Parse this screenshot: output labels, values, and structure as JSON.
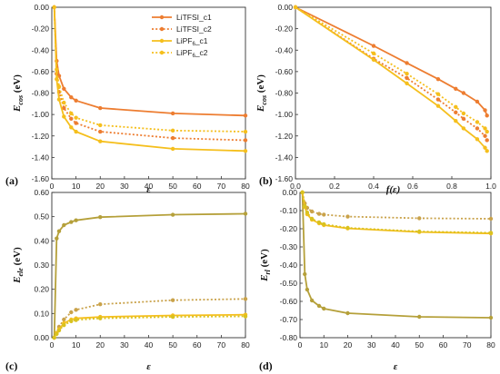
{
  "chart_data": [
    {
      "id": "a",
      "type": "line",
      "panel_label": "(a)",
      "xlabel": "ε",
      "ylabel_main": "E",
      "ylabel_sub": "cos",
      "ylabel_unit": " (eV)",
      "xlim": [
        0,
        80
      ],
      "ylim": [
        -1.6,
        0
      ],
      "xticks": [
        0,
        10,
        20,
        30,
        40,
        50,
        60,
        70,
        80
      ],
      "yticks": [
        0,
        -0.2,
        -0.4,
        -0.6,
        -0.8,
        -1.0,
        -1.2,
        -1.4,
        -1.6
      ],
      "ytick_labels": [
        "0.00",
        "-0.20",
        "-0.40",
        "-0.60",
        "-0.80",
        "-1.00",
        "-1.20",
        "-1.40",
        "-1.60"
      ],
      "legend": {
        "placement": "top-right",
        "entries": [
          {
            "series": 0,
            "text": "LiTFSI_c1"
          },
          {
            "series": 1,
            "text": "LiTFSI_c2"
          },
          {
            "series": 2,
            "text_main": "LiPF",
            "text_sub": "6",
            "text_tail": "_c1"
          },
          {
            "series": 3,
            "text_main": "LiPF",
            "text_sub": "6",
            "text_tail": "_c2"
          }
        ]
      },
      "series": [
        {
          "name": "LiTFSI_c1",
          "color": "#ed7d31",
          "dashed": false,
          "x": [
            1,
            2,
            3,
            5,
            8,
            10,
            20,
            50,
            80
          ],
          "y": [
            0,
            -0.5,
            -0.64,
            -0.76,
            -0.84,
            -0.87,
            -0.94,
            -0.99,
            -1.01
          ]
        },
        {
          "name": "LiTFSI_c2",
          "color": "#ed7d31",
          "dashed": true,
          "x": [
            1,
            2,
            3,
            5,
            8,
            10,
            20,
            50,
            80
          ],
          "y": [
            0,
            -0.62,
            -0.79,
            -0.94,
            -1.04,
            -1.08,
            -1.16,
            -1.22,
            -1.24
          ]
        },
        {
          "name": "LiPF6_c1",
          "color": "#f5bf1d",
          "dashed": false,
          "x": [
            1,
            2,
            3,
            5,
            8,
            10,
            20,
            50,
            80
          ],
          "y": [
            0,
            -0.67,
            -0.86,
            -1.02,
            -1.12,
            -1.16,
            -1.25,
            -1.32,
            -1.34
          ]
        },
        {
          "name": "LiPF6_c2",
          "color": "#f5bf1d",
          "dashed": true,
          "x": [
            1,
            2,
            3,
            5,
            8,
            10,
            20,
            50,
            80
          ],
          "y": [
            0,
            -0.58,
            -0.74,
            -0.89,
            -0.99,
            -1.03,
            -1.1,
            -1.15,
            -1.16
          ]
        }
      ]
    },
    {
      "id": "b",
      "type": "line",
      "panel_label": "(b)",
      "xlabel": "f(ε)",
      "ylabel_main": "E",
      "ylabel_sub": "cos",
      "ylabel_unit": " (eV)",
      "xlim": [
        0,
        1
      ],
      "ylim": [
        -1.6,
        0
      ],
      "xticks": [
        0,
        0.2,
        0.4,
        0.6,
        0.8,
        1.0
      ],
      "xtick_labels": [
        "0.0",
        "0.2",
        "0.4",
        "0.6",
        "0.8",
        "1.0"
      ],
      "yticks": [
        0,
        -0.2,
        -0.4,
        -0.6,
        -0.8,
        -1.0,
        -1.2,
        -1.4,
        -1.6
      ],
      "ytick_labels": [
        "0.00",
        "-0.20",
        "-0.40",
        "-0.60",
        "-0.80",
        "-1.00",
        "-1.20",
        "-1.40",
        "-1.60"
      ],
      "series": [
        {
          "name": "LiTFSI_c1",
          "color": "#ed7d31",
          "dashed": false,
          "x": [
            0,
            0.4,
            0.57,
            0.73,
            0.82,
            0.86,
            0.93,
            0.97,
            0.98
          ],
          "y": [
            0,
            -0.36,
            -0.52,
            -0.67,
            -0.76,
            -0.8,
            -0.88,
            -0.96,
            -1.01
          ]
        },
        {
          "name": "LiTFSI_c2",
          "color": "#ed7d31",
          "dashed": true,
          "x": [
            0,
            0.4,
            0.57,
            0.73,
            0.82,
            0.86,
            0.93,
            0.97,
            0.98
          ],
          "y": [
            0,
            -0.48,
            -0.66,
            -0.86,
            -0.98,
            -1.04,
            -1.13,
            -1.2,
            -1.24
          ]
        },
        {
          "name": "LiPF6_c1",
          "color": "#f5bf1d",
          "dashed": false,
          "x": [
            0,
            0.4,
            0.57,
            0.73,
            0.82,
            0.86,
            0.93,
            0.97,
            0.98
          ],
          "y": [
            0,
            -0.49,
            -0.71,
            -0.92,
            -1.06,
            -1.13,
            -1.23,
            -1.31,
            -1.34
          ]
        },
        {
          "name": "LiPF6_c2",
          "color": "#f5bf1d",
          "dashed": true,
          "x": [
            0,
            0.4,
            0.57,
            0.73,
            0.82,
            0.86,
            0.93,
            0.97,
            0.98
          ],
          "y": [
            0,
            -0.43,
            -0.62,
            -0.81,
            -0.93,
            -0.99,
            -1.07,
            -1.13,
            -1.16
          ]
        }
      ]
    },
    {
      "id": "c",
      "type": "line",
      "panel_label": "(c)",
      "xlabel": "ε",
      "ylabel_main": "E",
      "ylabel_sub": "ele",
      "ylabel_unit": " (eV)",
      "xlim": [
        0,
        80
      ],
      "ylim": [
        0,
        0.6
      ],
      "xticks": [
        0,
        10,
        20,
        30,
        40,
        50,
        60,
        70,
        80
      ],
      "yticks": [
        0,
        0.1,
        0.2,
        0.3,
        0.4,
        0.5,
        0.6
      ],
      "ytick_labels": [
        "0.00",
        "0.10",
        "0.20",
        "0.30",
        "0.40",
        "0.50",
        "0.60"
      ],
      "series": [
        {
          "name": "LiTFSI_c1",
          "color": "#b5a03a",
          "dashed": false,
          "x": [
            1,
            2,
            3,
            5,
            8,
            10,
            20,
            50,
            80
          ],
          "y": [
            0,
            0.41,
            0.44,
            0.465,
            0.478,
            0.485,
            0.498,
            0.508,
            0.512
          ]
        },
        {
          "name": "LiTFSI_c2",
          "color": "#c9a24a",
          "dashed": true,
          "x": [
            1,
            2,
            3,
            5,
            8,
            10,
            20,
            50,
            80
          ],
          "y": [
            0,
            0.02,
            0.045,
            0.075,
            0.105,
            0.115,
            0.138,
            0.155,
            0.16
          ]
        },
        {
          "name": "LiPF6_c1",
          "color": "#f5bf1d",
          "dashed": false,
          "x": [
            1,
            2,
            3,
            5,
            8,
            10,
            20,
            50,
            80
          ],
          "y": [
            0,
            0.02,
            0.035,
            0.06,
            0.075,
            0.08,
            0.086,
            0.092,
            0.095
          ]
        },
        {
          "name": "LiPF6_c2",
          "color": "#d9c21f",
          "dashed": true,
          "x": [
            1,
            2,
            3,
            5,
            8,
            10,
            20,
            50,
            80
          ],
          "y": [
            0,
            0.015,
            0.03,
            0.052,
            0.068,
            0.073,
            0.08,
            0.086,
            0.088
          ]
        }
      ]
    },
    {
      "id": "d",
      "type": "line",
      "panel_label": "(d)",
      "xlabel": "ε",
      "ylabel_main": "E",
      "ylabel_sub": "rl",
      "ylabel_unit": " (eV)",
      "xlim": [
        0,
        80
      ],
      "ylim": [
        -0.8,
        0
      ],
      "xticks": [
        0,
        10,
        20,
        30,
        40,
        50,
        60,
        70,
        80
      ],
      "yticks": [
        0,
        -0.1,
        -0.2,
        -0.3,
        -0.4,
        -0.5,
        -0.6,
        -0.7,
        -0.8
      ],
      "ytick_labels": [
        "0.00",
        "-0.10",
        "-0.20",
        "-0.30",
        "-0.40",
        "-0.50",
        "-0.60",
        "-0.70",
        "-0.80"
      ],
      "series": [
        {
          "name": "LiTFSI_c1",
          "color": "#b5a03a",
          "dashed": false,
          "x": [
            1,
            2,
            3,
            5,
            8,
            10,
            20,
            50,
            80
          ],
          "y": [
            0,
            -0.45,
            -0.535,
            -0.595,
            -0.625,
            -0.64,
            -0.665,
            -0.685,
            -0.69
          ]
        },
        {
          "name": "LiTFSI_c2",
          "color": "#c9a24a",
          "dashed": true,
          "x": [
            1,
            2,
            3,
            5,
            8,
            10,
            20,
            50,
            80
          ],
          "y": [
            0,
            -0.06,
            -0.085,
            -0.105,
            -0.118,
            -0.122,
            -0.133,
            -0.142,
            -0.145
          ]
        },
        {
          "name": "LiPF6_c1",
          "color": "#f5bf1d",
          "dashed": false,
          "x": [
            1,
            2,
            3,
            5,
            8,
            10,
            20,
            50,
            80
          ],
          "y": [
            0,
            -0.08,
            -0.12,
            -0.15,
            -0.17,
            -0.18,
            -0.198,
            -0.218,
            -0.226
          ]
        },
        {
          "name": "LiPF6_c2",
          "color": "#d9c21f",
          "dashed": true,
          "x": [
            1,
            2,
            3,
            5,
            8,
            10,
            20,
            50,
            80
          ],
          "y": [
            0,
            -0.075,
            -0.11,
            -0.145,
            -0.165,
            -0.175,
            -0.195,
            -0.215,
            -0.222
          ]
        }
      ]
    }
  ]
}
